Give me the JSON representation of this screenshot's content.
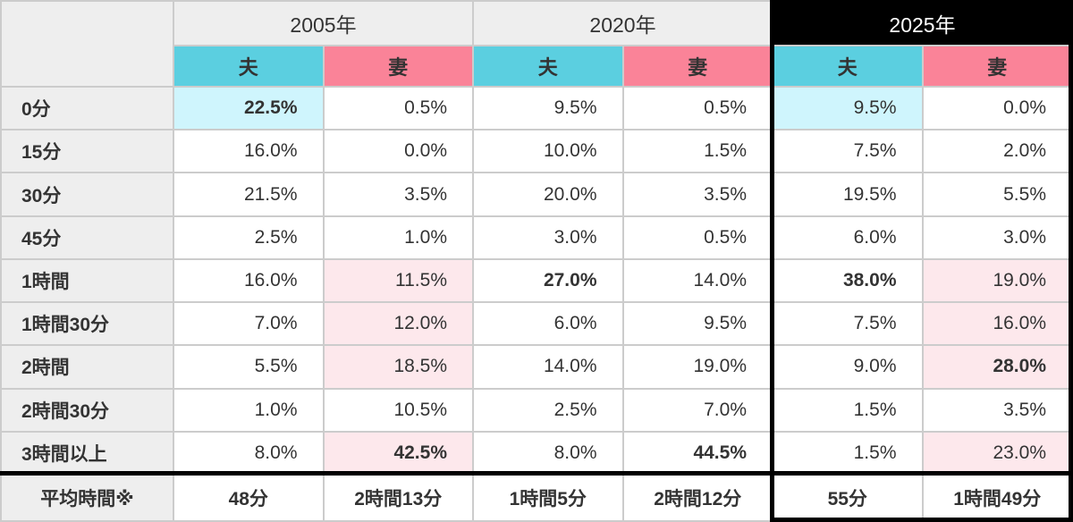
{
  "colors": {
    "husband_header": "#5bcfe0",
    "wife_header": "#fa8398",
    "highlight_cyan": "#cff5fd",
    "highlight_pink": "#fde8ec",
    "label_bg": "#eeeeee",
    "grid_line": "#cccccc",
    "emphasis_group_border": "#000000",
    "year_2025_bg": "#000000",
    "text": "#333333"
  },
  "table": {
    "year_groups": [
      {
        "label": "2005年",
        "highlight": false
      },
      {
        "label": "2020年",
        "highlight": false
      },
      {
        "label": "2025年",
        "highlight": true
      }
    ],
    "spouse_headers": {
      "husband": "夫",
      "wife": "妻"
    },
    "rows": [
      {
        "label": "0分",
        "cells": [
          {
            "text": "22.5%",
            "bold": true,
            "bg": "cyan"
          },
          {
            "text": "0.5%"
          },
          {
            "text": "9.5%"
          },
          {
            "text": "0.5%"
          },
          {
            "text": "9.5%",
            "bg": "cyan"
          },
          {
            "text": "0.0%"
          }
        ]
      },
      {
        "label": "15分",
        "cells": [
          {
            "text": "16.0%"
          },
          {
            "text": "0.0%"
          },
          {
            "text": "10.0%"
          },
          {
            "text": "1.5%"
          },
          {
            "text": "7.5%"
          },
          {
            "text": "2.0%"
          }
        ]
      },
      {
        "label": "30分",
        "cells": [
          {
            "text": "21.5%"
          },
          {
            "text": "3.5%"
          },
          {
            "text": "20.0%"
          },
          {
            "text": "3.5%"
          },
          {
            "text": "19.5%"
          },
          {
            "text": "5.5%"
          }
        ]
      },
      {
        "label": "45分",
        "cells": [
          {
            "text": "2.5%"
          },
          {
            "text": "1.0%"
          },
          {
            "text": "3.0%"
          },
          {
            "text": "0.5%"
          },
          {
            "text": "6.0%"
          },
          {
            "text": "3.0%"
          }
        ]
      },
      {
        "label": "1時間",
        "cells": [
          {
            "text": "16.0%"
          },
          {
            "text": "11.5%",
            "bg": "pink"
          },
          {
            "text": "27.0%",
            "bold": true
          },
          {
            "text": "14.0%"
          },
          {
            "text": "38.0%",
            "bold": true
          },
          {
            "text": "19.0%",
            "bg": "pink"
          }
        ]
      },
      {
        "label": "1時間30分",
        "cells": [
          {
            "text": "7.0%"
          },
          {
            "text": "12.0%",
            "bg": "pink"
          },
          {
            "text": "6.0%"
          },
          {
            "text": "9.5%"
          },
          {
            "text": "7.5%"
          },
          {
            "text": "16.0%",
            "bg": "pink"
          }
        ]
      },
      {
        "label": "2時間",
        "cells": [
          {
            "text": "5.5%"
          },
          {
            "text": "18.5%",
            "bg": "pink"
          },
          {
            "text": "14.0%"
          },
          {
            "text": "19.0%"
          },
          {
            "text": "9.0%"
          },
          {
            "text": "28.0%",
            "bold": true,
            "bg": "pink"
          }
        ]
      },
      {
        "label": "2時間30分",
        "cells": [
          {
            "text": "1.0%"
          },
          {
            "text": "10.5%"
          },
          {
            "text": "2.5%"
          },
          {
            "text": "7.0%"
          },
          {
            "text": "1.5%"
          },
          {
            "text": "3.5%"
          }
        ]
      },
      {
        "label": "3時間以上",
        "cells": [
          {
            "text": "8.0%"
          },
          {
            "text": "42.5%",
            "bold": true,
            "bg": "pink"
          },
          {
            "text": "8.0%"
          },
          {
            "text": "44.5%",
            "bold": true
          },
          {
            "text": "1.5%"
          },
          {
            "text": "23.0%",
            "bg": "pink"
          }
        ]
      }
    ],
    "average_row": {
      "label": "平均時間※",
      "values": [
        "48分",
        "2時間13分",
        "1時間5分",
        "2時間12分",
        "55分",
        "1時間49分"
      ]
    }
  },
  "chart_data": {
    "type": "table",
    "categories": [
      "0分",
      "15分",
      "30分",
      "45分",
      "1時間",
      "1時間30分",
      "2時間",
      "2時間30分",
      "3時間以上"
    ],
    "unit": "%",
    "series": [
      {
        "name": "2005年 夫",
        "values": [
          22.5,
          16.0,
          21.5,
          2.5,
          16.0,
          7.0,
          5.5,
          1.0,
          8.0
        ],
        "average": "48分"
      },
      {
        "name": "2005年 妻",
        "values": [
          0.5,
          0.0,
          3.5,
          1.0,
          11.5,
          12.0,
          18.5,
          10.5,
          42.5
        ],
        "average": "2時間13分"
      },
      {
        "name": "2020年 夫",
        "values": [
          9.5,
          10.0,
          20.0,
          3.0,
          27.0,
          6.0,
          14.0,
          2.5,
          8.0
        ],
        "average": "1時間5分"
      },
      {
        "name": "2020年 妻",
        "values": [
          0.5,
          1.5,
          3.5,
          0.5,
          14.0,
          9.5,
          19.0,
          7.0,
          44.5
        ],
        "average": "2時間12分"
      },
      {
        "name": "2025年 夫",
        "values": [
          9.5,
          7.5,
          19.5,
          6.0,
          38.0,
          7.5,
          9.0,
          1.5,
          1.5
        ],
        "average": "55分"
      },
      {
        "name": "2025年 妻",
        "values": [
          0.0,
          2.0,
          5.5,
          3.0,
          19.0,
          16.0,
          28.0,
          3.5,
          23.0
        ],
        "average": "1時間49分"
      }
    ],
    "average_label": "平均時間※",
    "notes": "2025年 column group emphasized with black border; highest/notable cells shaded cyan (夫 0分) or pink (妻 long durations); bold cells mark peak values."
  }
}
